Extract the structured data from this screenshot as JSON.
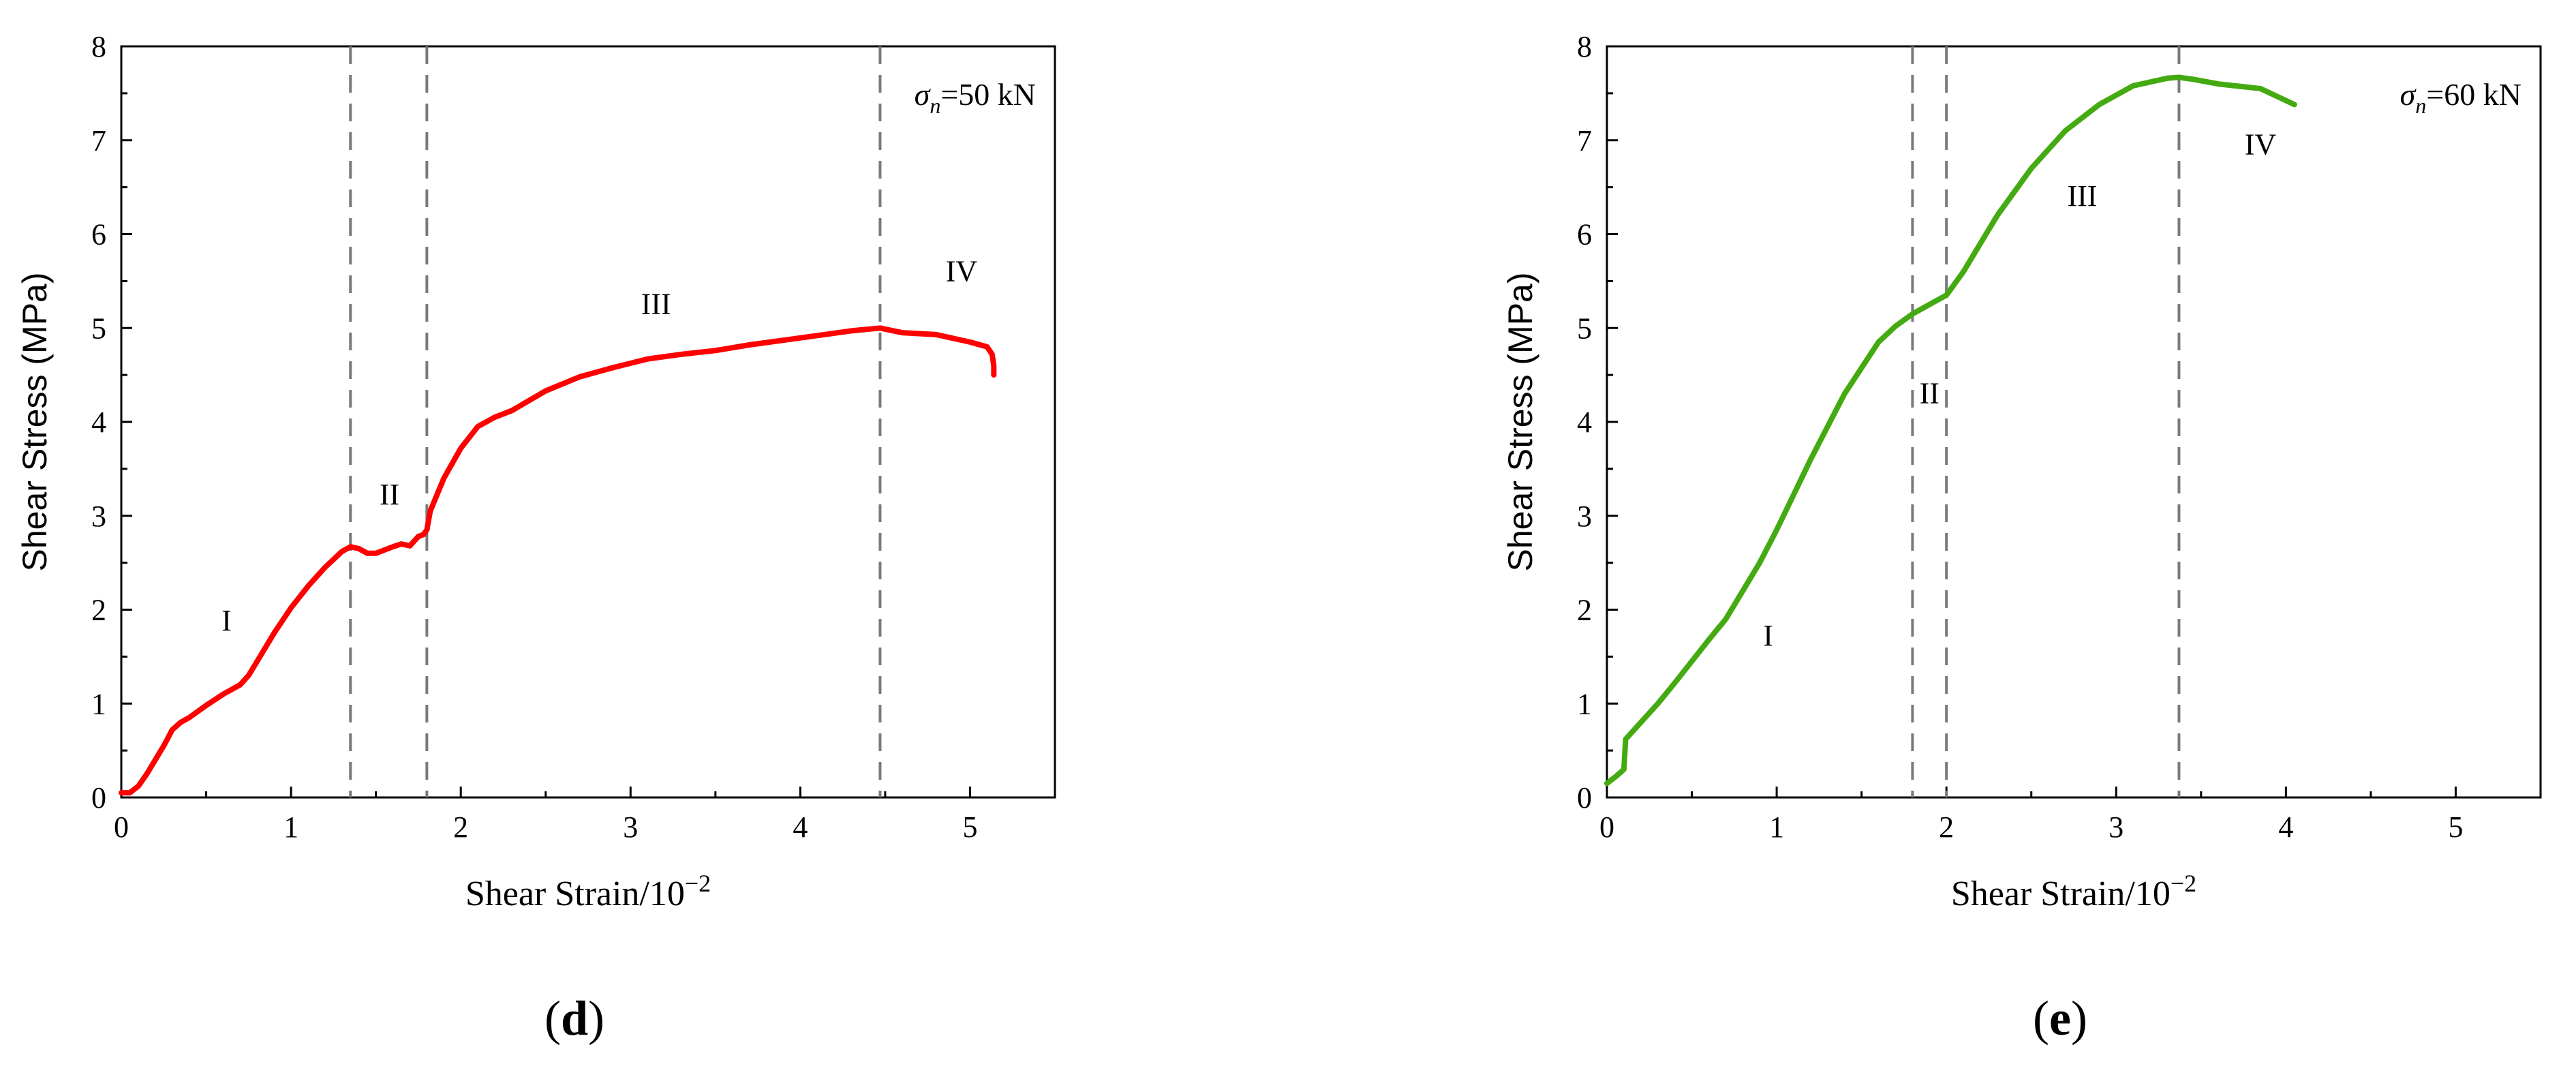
{
  "chart_data": [
    {
      "type": "line",
      "panel_label": "d",
      "xlabel": "Shear Strain/10",
      "xlabel_exponent": "−2",
      "ylabel": "Shear Stress (MPa)",
      "xlim": [
        0,
        5.5
      ],
      "ylim": [
        0,
        8
      ],
      "xticks": [
        "0",
        "1",
        "2",
        "3",
        "4",
        "5"
      ],
      "yticks": [
        "0",
        "1",
        "2",
        "3",
        "4",
        "5",
        "6",
        "7",
        "8"
      ],
      "annotation": {
        "symbol": "σ",
        "subscript": "n",
        "text": "=50 kN"
      },
      "vlines": [
        1.35,
        1.8,
        4.47
      ],
      "regions": [
        {
          "label": "I",
          "x": 0.62,
          "y": 1.78
        },
        {
          "label": "II",
          "x": 1.58,
          "y": 3.12
        },
        {
          "label": "III",
          "x": 3.15,
          "y": 5.15
        },
        {
          "label": "IV",
          "x": 4.95,
          "y": 5.5
        }
      ],
      "series": [
        {
          "color": "#ff0000",
          "x": [
            0.0,
            0.05,
            0.1,
            0.15,
            0.2,
            0.25,
            0.3,
            0.35,
            0.4,
            0.5,
            0.6,
            0.7,
            0.75,
            0.8,
            0.9,
            1.0,
            1.1,
            1.2,
            1.3,
            1.35,
            1.4,
            1.45,
            1.5,
            1.6,
            1.65,
            1.7,
            1.75,
            1.78,
            1.8,
            1.82,
            1.9,
            2.0,
            2.1,
            2.2,
            2.3,
            2.5,
            2.7,
            2.9,
            3.1,
            3.3,
            3.5,
            3.7,
            3.9,
            4.1,
            4.3,
            4.47,
            4.6,
            4.8,
            5.0,
            5.1,
            5.13,
            5.14,
            5.14
          ],
          "y": [
            0.05,
            0.05,
            0.12,
            0.25,
            0.4,
            0.55,
            0.72,
            0.8,
            0.85,
            0.98,
            1.1,
            1.2,
            1.3,
            1.45,
            1.75,
            2.02,
            2.25,
            2.45,
            2.62,
            2.67,
            2.65,
            2.6,
            2.6,
            2.67,
            2.7,
            2.68,
            2.78,
            2.8,
            2.85,
            3.05,
            3.4,
            3.72,
            3.95,
            4.05,
            4.12,
            4.33,
            4.48,
            4.58,
            4.67,
            4.72,
            4.76,
            4.82,
            4.87,
            4.92,
            4.97,
            5.0,
            4.95,
            4.93,
            4.85,
            4.8,
            4.72,
            4.6,
            4.5
          ]
        }
      ]
    },
    {
      "type": "line",
      "panel_label": "e",
      "xlabel": "Shear Strain/10",
      "xlabel_exponent": "−2",
      "ylabel": "Shear Stress (MPa)",
      "xlim": [
        0,
        5.5
      ],
      "ylim": [
        0,
        8
      ],
      "xticks": [
        "0",
        "1",
        "2",
        "3",
        "4",
        "5"
      ],
      "yticks": [
        "0",
        "1",
        "2",
        "3",
        "4",
        "5",
        "6",
        "7",
        "8"
      ],
      "annotation": {
        "symbol": "σ",
        "subscript": "n",
        "text": "=60 kN"
      },
      "vlines": [
        1.8,
        2.0,
        3.37
      ],
      "regions": [
        {
          "label": "I",
          "x": 0.95,
          "y": 1.62
        },
        {
          "label": "II",
          "x": 1.9,
          "y": 4.2
        },
        {
          "label": "III",
          "x": 2.8,
          "y": 6.3
        },
        {
          "label": "IV",
          "x": 3.85,
          "y": 6.85
        }
      ],
      "series": [
        {
          "color": "#44aa11",
          "x": [
            0.0,
            0.05,
            0.1,
            0.11,
            0.2,
            0.3,
            0.4,
            0.5,
            0.6,
            0.7,
            0.8,
            0.9,
            1.0,
            1.2,
            1.4,
            1.6,
            1.7,
            1.8,
            1.9,
            2.0,
            2.1,
            2.3,
            2.5,
            2.7,
            2.9,
            3.1,
            3.3,
            3.37,
            3.45,
            3.6,
            3.85,
            4.05
          ],
          "y": [
            0.15,
            0.22,
            0.3,
            0.62,
            0.8,
            1.0,
            1.22,
            1.45,
            1.68,
            1.9,
            2.2,
            2.5,
            2.85,
            3.6,
            4.3,
            4.85,
            5.02,
            5.15,
            5.25,
            5.35,
            5.6,
            6.2,
            6.7,
            7.1,
            7.38,
            7.58,
            7.66,
            7.67,
            7.65,
            7.6,
            7.55,
            7.38
          ]
        }
      ]
    }
  ]
}
